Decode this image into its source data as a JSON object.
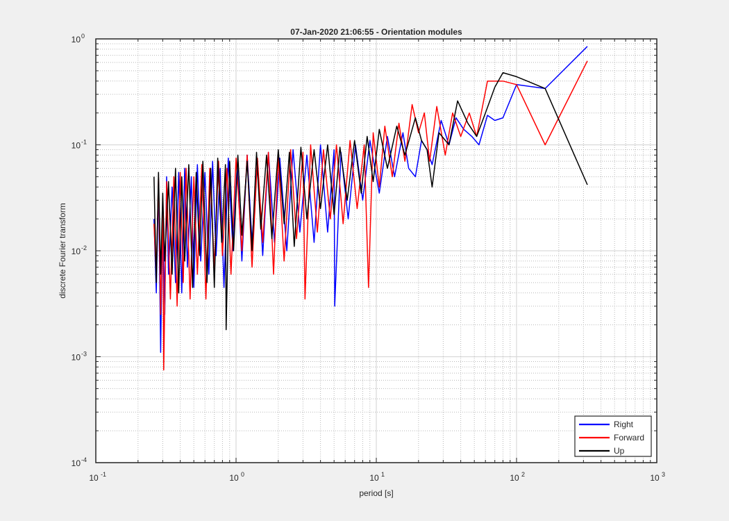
{
  "chart_data": {
    "type": "line",
    "title": "07-Jan-2020 21:06:55 - Orientation modules",
    "xlabel": "period [s]",
    "ylabel": "discrete Fourier transform",
    "xscale": "log",
    "yscale": "log",
    "xlim": [
      0.1,
      1000
    ],
    "ylim": [
      0.0001,
      1
    ],
    "grid": true,
    "minor_grid": true,
    "xticks": [
      {
        "value": 0.1,
        "base": "10",
        "exp": "-1"
      },
      {
        "value": 1,
        "base": "10",
        "exp": "0"
      },
      {
        "value": 10,
        "base": "10",
        "exp": "1"
      },
      {
        "value": 100,
        "base": "10",
        "exp": "2"
      },
      {
        "value": 1000,
        "base": "10",
        "exp": "3"
      }
    ],
    "yticks": [
      {
        "value": 0.0001,
        "base": "10",
        "exp": "-4"
      },
      {
        "value": 0.001,
        "base": "10",
        "exp": "-3"
      },
      {
        "value": 0.01,
        "base": "10",
        "exp": "-2"
      },
      {
        "value": 0.1,
        "base": "10",
        "exp": "-1"
      },
      {
        "value": 1,
        "base": "10",
        "exp": "0"
      }
    ],
    "legend_position": "bottom-right",
    "series": [
      {
        "name": "Right",
        "color": "#0000ff",
        "points": [
          [
            0.26,
            0.02
          ],
          [
            0.27,
            0.004
          ],
          [
            0.28,
            0.045
          ],
          [
            0.29,
            0.0011
          ],
          [
            0.3,
            0.03
          ],
          [
            0.31,
            0.0025
          ],
          [
            0.32,
            0.05
          ],
          [
            0.33,
            0.006
          ],
          [
            0.35,
            0.04
          ],
          [
            0.37,
            0.005
          ],
          [
            0.39,
            0.055
          ],
          [
            0.41,
            0.004
          ],
          [
            0.43,
            0.06
          ],
          [
            0.45,
            0.007
          ],
          [
            0.48,
            0.05
          ],
          [
            0.5,
            0.0045
          ],
          [
            0.53,
            0.065
          ],
          [
            0.56,
            0.008
          ],
          [
            0.6,
            0.055
          ],
          [
            0.64,
            0.006
          ],
          [
            0.68,
            0.07
          ],
          [
            0.72,
            0.009
          ],
          [
            0.77,
            0.06
          ],
          [
            0.82,
            0.0045
          ],
          [
            0.88,
            0.075
          ],
          [
            0.95,
            0.01
          ],
          [
            1.02,
            0.065
          ],
          [
            1.1,
            0.008
          ],
          [
            1.2,
            0.08
          ],
          [
            1.3,
            0.012
          ],
          [
            1.42,
            0.07
          ],
          [
            1.55,
            0.009
          ],
          [
            1.7,
            0.085
          ],
          [
            1.88,
            0.012
          ],
          [
            2.05,
            0.075
          ],
          [
            2.3,
            0.01
          ],
          [
            2.55,
            0.09
          ],
          [
            2.85,
            0.015
          ],
          [
            3.2,
            0.08
          ],
          [
            3.6,
            0.012
          ],
          [
            4.0,
            0.1
          ],
          [
            4.5,
            0.015
          ],
          [
            5.0,
            0.09
          ],
          [
            5.05,
            0.003
          ],
          [
            5.6,
            0.085
          ],
          [
            6.3,
            0.02
          ],
          [
            7.1,
            0.1
          ],
          [
            8.0,
            0.03
          ],
          [
            9.0,
            0.11
          ],
          [
            10.5,
            0.035
          ],
          [
            12,
            0.12
          ],
          [
            13.5,
            0.05
          ],
          [
            15.5,
            0.13
          ],
          [
            17,
            0.06
          ],
          [
            19,
            0.05
          ],
          [
            21,
            0.11
          ],
          [
            23,
            0.09
          ],
          [
            25,
            0.065
          ],
          [
            29,
            0.17
          ],
          [
            33,
            0.1
          ],
          [
            37,
            0.18
          ],
          [
            42,
            0.14
          ],
          [
            48,
            0.12
          ],
          [
            54,
            0.1
          ],
          [
            62,
            0.19
          ],
          [
            70,
            0.17
          ],
          [
            80,
            0.18
          ],
          [
            100,
            0.37
          ],
          [
            160,
            0.34
          ],
          [
            320,
            0.85
          ]
        ]
      },
      {
        "name": "Forward",
        "color": "#ff0000",
        "points": [
          [
            0.26,
            0.018
          ],
          [
            0.27,
            0.006
          ],
          [
            0.28,
            0.05
          ],
          [
            0.29,
            0.0025
          ],
          [
            0.3,
            0.03
          ],
          [
            0.305,
            0.00075
          ],
          [
            0.32,
            0.045
          ],
          [
            0.34,
            0.0035
          ],
          [
            0.36,
            0.05
          ],
          [
            0.38,
            0.003
          ],
          [
            0.4,
            0.055
          ],
          [
            0.42,
            0.005
          ],
          [
            0.44,
            0.06
          ],
          [
            0.47,
            0.0035
          ],
          [
            0.5,
            0.05
          ],
          [
            0.53,
            0.006
          ],
          [
            0.57,
            0.065
          ],
          [
            0.61,
            0.0035
          ],
          [
            0.65,
            0.06
          ],
          [
            0.7,
            0.007
          ],
          [
            0.75,
            0.07
          ],
          [
            0.8,
            0.009
          ],
          [
            0.86,
            0.06
          ],
          [
            0.92,
            0.006
          ],
          [
            1.0,
            0.075
          ],
          [
            1.1,
            0.01
          ],
          [
            1.2,
            0.08
          ],
          [
            1.3,
            0.007
          ],
          [
            1.42,
            0.075
          ],
          [
            1.55,
            0.012
          ],
          [
            1.7,
            0.085
          ],
          [
            1.85,
            0.006
          ],
          [
            2.0,
            0.08
          ],
          [
            2.2,
            0.008
          ],
          [
            2.45,
            0.09
          ],
          [
            2.7,
            0.013
          ],
          [
            3.0,
            0.085
          ],
          [
            3.1,
            0.0035
          ],
          [
            3.4,
            0.1
          ],
          [
            3.8,
            0.015
          ],
          [
            4.2,
            0.09
          ],
          [
            4.7,
            0.02
          ],
          [
            5.2,
            0.1
          ],
          [
            5.8,
            0.018
          ],
          [
            6.5,
            0.11
          ],
          [
            7.3,
            0.025
          ],
          [
            8.2,
            0.1
          ],
          [
            8.8,
            0.0045
          ],
          [
            9.5,
            0.13
          ],
          [
            10.5,
            0.04
          ],
          [
            11.5,
            0.15
          ],
          [
            13,
            0.05
          ],
          [
            14.5,
            0.16
          ],
          [
            16,
            0.07
          ],
          [
            18,
            0.24
          ],
          [
            20,
            0.13
          ],
          [
            22,
            0.2
          ],
          [
            24,
            0.07
          ],
          [
            27,
            0.23
          ],
          [
            31,
            0.08
          ],
          [
            35,
            0.2
          ],
          [
            40,
            0.12
          ],
          [
            46,
            0.2
          ],
          [
            52,
            0.12
          ],
          [
            62,
            0.4
          ],
          [
            80,
            0.4
          ],
          [
            100,
            0.37
          ],
          [
            160,
            0.1
          ],
          [
            320,
            0.62
          ]
        ]
      },
      {
        "name": "Up",
        "color": "#000000",
        "points": [
          [
            0.26,
            0.05
          ],
          [
            0.27,
            0.005
          ],
          [
            0.28,
            0.055
          ],
          [
            0.29,
            0.006
          ],
          [
            0.3,
            0.035
          ],
          [
            0.31,
            0.008
          ],
          [
            0.33,
            0.045
          ],
          [
            0.35,
            0.006
          ],
          [
            0.37,
            0.06
          ],
          [
            0.39,
            0.004
          ],
          [
            0.41,
            0.05
          ],
          [
            0.43,
            0.008
          ],
          [
            0.46,
            0.065
          ],
          [
            0.49,
            0.0045
          ],
          [
            0.52,
            0.055
          ],
          [
            0.55,
            0.009
          ],
          [
            0.58,
            0.07
          ],
          [
            0.62,
            0.005
          ],
          [
            0.66,
            0.06
          ],
          [
            0.7,
            0.0045
          ],
          [
            0.74,
            0.075
          ],
          [
            0.79,
            0.012
          ],
          [
            0.84,
            0.065
          ],
          [
            0.85,
            0.0018
          ],
          [
            0.9,
            0.07
          ],
          [
            0.96,
            0.01
          ],
          [
            1.03,
            0.08
          ],
          [
            1.1,
            0.014
          ],
          [
            1.2,
            0.07
          ],
          [
            1.3,
            0.01
          ],
          [
            1.4,
            0.085
          ],
          [
            1.5,
            0.016
          ],
          [
            1.65,
            0.08
          ],
          [
            1.8,
            0.013
          ],
          [
            2.0,
            0.09
          ],
          [
            2.2,
            0.018
          ],
          [
            2.4,
            0.085
          ],
          [
            2.6,
            0.011
          ],
          [
            2.9,
            0.095
          ],
          [
            3.2,
            0.02
          ],
          [
            3.6,
            0.09
          ],
          [
            4.0,
            0.025
          ],
          [
            4.5,
            0.1
          ],
          [
            5.0,
            0.022
          ],
          [
            5.5,
            0.095
          ],
          [
            6.2,
            0.03
          ],
          [
            7.0,
            0.11
          ],
          [
            7.8,
            0.035
          ],
          [
            8.6,
            0.12
          ],
          [
            9.5,
            0.045
          ],
          [
            10.5,
            0.14
          ],
          [
            12,
            0.06
          ],
          [
            14,
            0.15
          ],
          [
            16,
            0.08
          ],
          [
            19,
            0.18
          ],
          [
            21,
            0.11
          ],
          [
            23,
            0.09
          ],
          [
            25,
            0.04
          ],
          [
            28,
            0.13
          ],
          [
            33,
            0.1
          ],
          [
            38,
            0.26
          ],
          [
            45,
            0.16
          ],
          [
            52,
            0.12
          ],
          [
            60,
            0.2
          ],
          [
            70,
            0.35
          ],
          [
            80,
            0.48
          ],
          [
            100,
            0.44
          ],
          [
            160,
            0.34
          ],
          [
            320,
            0.042
          ]
        ]
      }
    ]
  }
}
